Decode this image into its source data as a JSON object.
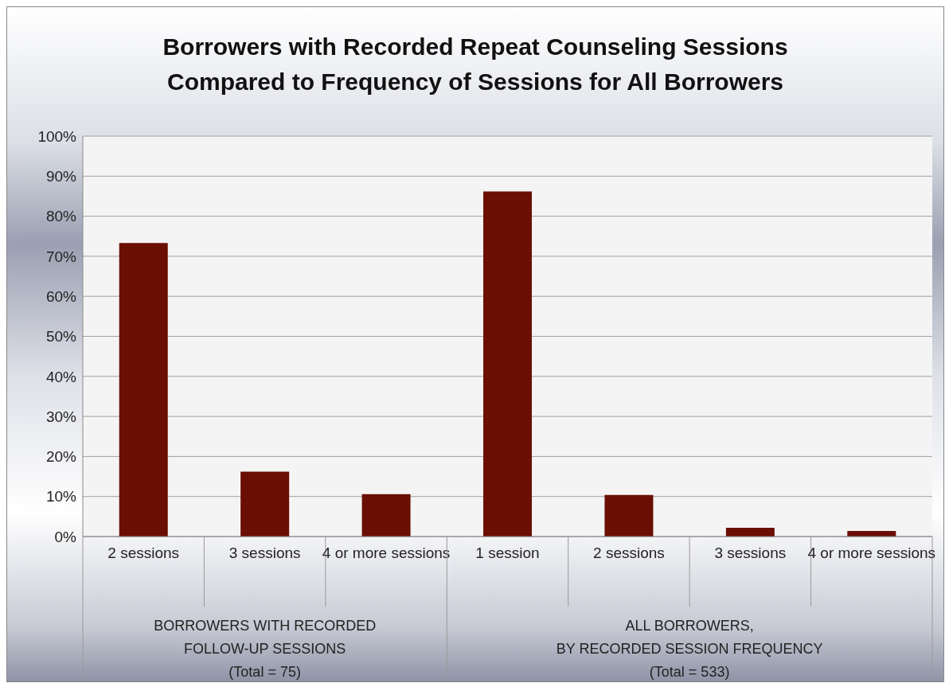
{
  "chart_data": {
    "type": "bar",
    "title": "Borrowers with Recorded Repeat Counseling Sessions\nCompared to Frequency of Sessions for All Borrowers",
    "categories": [
      "2 sessions",
      "3 sessions",
      "4 or more sessions",
      "1 session",
      "2 sessions",
      "3 sessions",
      "4 or more sessions"
    ],
    "values": [
      73.3,
      16.2,
      10.6,
      86.2,
      10.4,
      2.2,
      1.4
    ],
    "color": "#6b0e04",
    "ylim": [
      0,
      100
    ],
    "yticks": [
      {
        "value": 0,
        "label": "0%"
      },
      {
        "value": 10,
        "label": "10%"
      },
      {
        "value": 20,
        "label": "20%"
      },
      {
        "value": 30,
        "label": "30%"
      },
      {
        "value": 40,
        "label": "40%"
      },
      {
        "value": 50,
        "label": "50%"
      },
      {
        "value": 60,
        "label": "60%"
      },
      {
        "value": 70,
        "label": "70%"
      },
      {
        "value": 80,
        "label": "80%"
      },
      {
        "value": 90,
        "label": "90%"
      },
      {
        "value": 100,
        "label": "100%"
      }
    ],
    "grid": "y",
    "annotations": [
      "BORROWERS WITH RECORDED\nFOLLOW-UP SESSIONS\n(Total = 75)",
      "ALL BORROWERS,\nBY RECORDED SESSION FREQUENCY\n(Total = 533)"
    ]
  }
}
